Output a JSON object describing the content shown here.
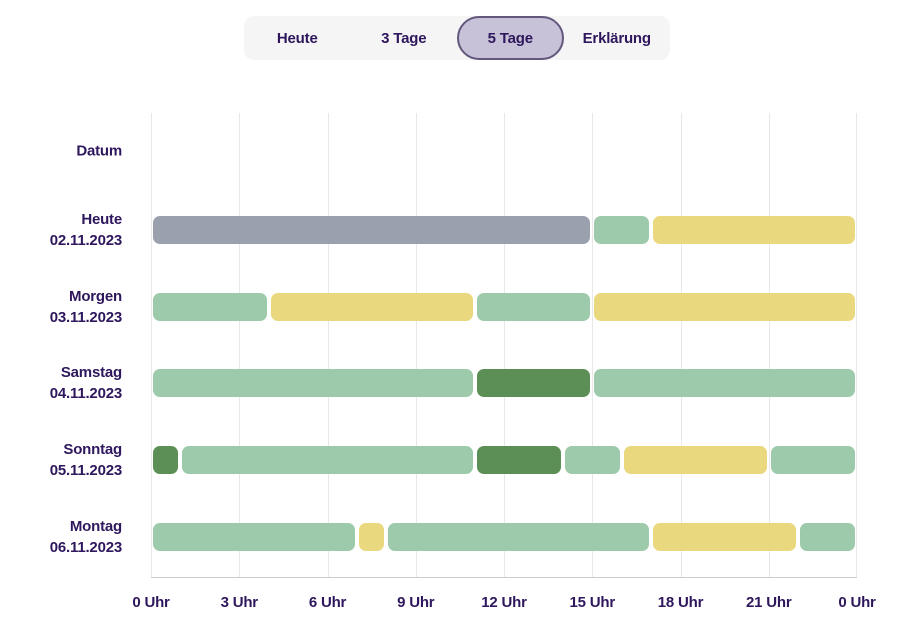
{
  "colors": {
    "text": "#2e175c",
    "tab_bar_bg": "#f5f5f5",
    "tab_selected_bg": "#c8c2d8",
    "tab_selected_border": "#63577d",
    "grid_line": "#e8e8e8",
    "axis_line": "#cccccc",
    "segment_palette": {
      "grau": "#9aa0ad",
      "hellgruen": "#9dcaab",
      "dunkelgruen": "#5b8f55",
      "gelb": "#e9d87d"
    }
  },
  "tabs": [
    {
      "label": "Heute",
      "selected": false
    },
    {
      "label": "3 Tage",
      "selected": false
    },
    {
      "label": "5 Tage",
      "selected": true
    },
    {
      "label": "Erklärung",
      "selected": false
    }
  ],
  "chart_data": {
    "type": "timeline",
    "axis_title": "Datum",
    "x_unit": "Uhr",
    "x_range_hours": [
      0,
      24
    ],
    "x_ticks": [
      {
        "hour": 0,
        "label": "0 Uhr"
      },
      {
        "hour": 3,
        "label": "3 Uhr"
      },
      {
        "hour": 6,
        "label": "6 Uhr"
      },
      {
        "hour": 9,
        "label": "9 Uhr"
      },
      {
        "hour": 12,
        "label": "12 Uhr"
      },
      {
        "hour": 15,
        "label": "15 Uhr"
      },
      {
        "hour": 18,
        "label": "18 Uhr"
      },
      {
        "hour": 21,
        "label": "21 Uhr"
      },
      {
        "hour": 24,
        "label": "0 Uhr"
      }
    ],
    "rows": [
      {
        "day": "Heute",
        "date": "02.11.2023",
        "segments": [
          {
            "start": 0,
            "end": 15,
            "category": "grau"
          },
          {
            "start": 15,
            "end": 17,
            "category": "hellgruen"
          },
          {
            "start": 17,
            "end": 24,
            "category": "gelb"
          }
        ]
      },
      {
        "day": "Morgen",
        "date": "03.11.2023",
        "segments": [
          {
            "start": 0,
            "end": 4,
            "category": "hellgruen"
          },
          {
            "start": 4,
            "end": 11,
            "category": "gelb"
          },
          {
            "start": 11,
            "end": 15,
            "category": "hellgruen"
          },
          {
            "start": 15,
            "end": 24,
            "category": "gelb"
          }
        ]
      },
      {
        "day": "Samstag",
        "date": "04.11.2023",
        "segments": [
          {
            "start": 0,
            "end": 11,
            "category": "hellgruen"
          },
          {
            "start": 11,
            "end": 15,
            "category": "dunkelgruen"
          },
          {
            "start": 15,
            "end": 24,
            "category": "hellgruen"
          }
        ]
      },
      {
        "day": "Sonntag",
        "date": "05.11.2023",
        "segments": [
          {
            "start": 0,
            "end": 1,
            "category": "dunkelgruen"
          },
          {
            "start": 1,
            "end": 11,
            "category": "hellgruen"
          },
          {
            "start": 11,
            "end": 14,
            "category": "dunkelgruen"
          },
          {
            "start": 14,
            "end": 16,
            "category": "hellgruen"
          },
          {
            "start": 16,
            "end": 21,
            "category": "gelb"
          },
          {
            "start": 21,
            "end": 24,
            "category": "hellgruen"
          }
        ]
      },
      {
        "day": "Montag",
        "date": "06.11.2023",
        "segments": [
          {
            "start": 0,
            "end": 7,
            "category": "hellgruen"
          },
          {
            "start": 7,
            "end": 8,
            "category": "gelb"
          },
          {
            "start": 8,
            "end": 17,
            "category": "hellgruen"
          },
          {
            "start": 17,
            "end": 22,
            "category": "gelb"
          },
          {
            "start": 22,
            "end": 24,
            "category": "hellgruen"
          }
        ]
      }
    ]
  }
}
